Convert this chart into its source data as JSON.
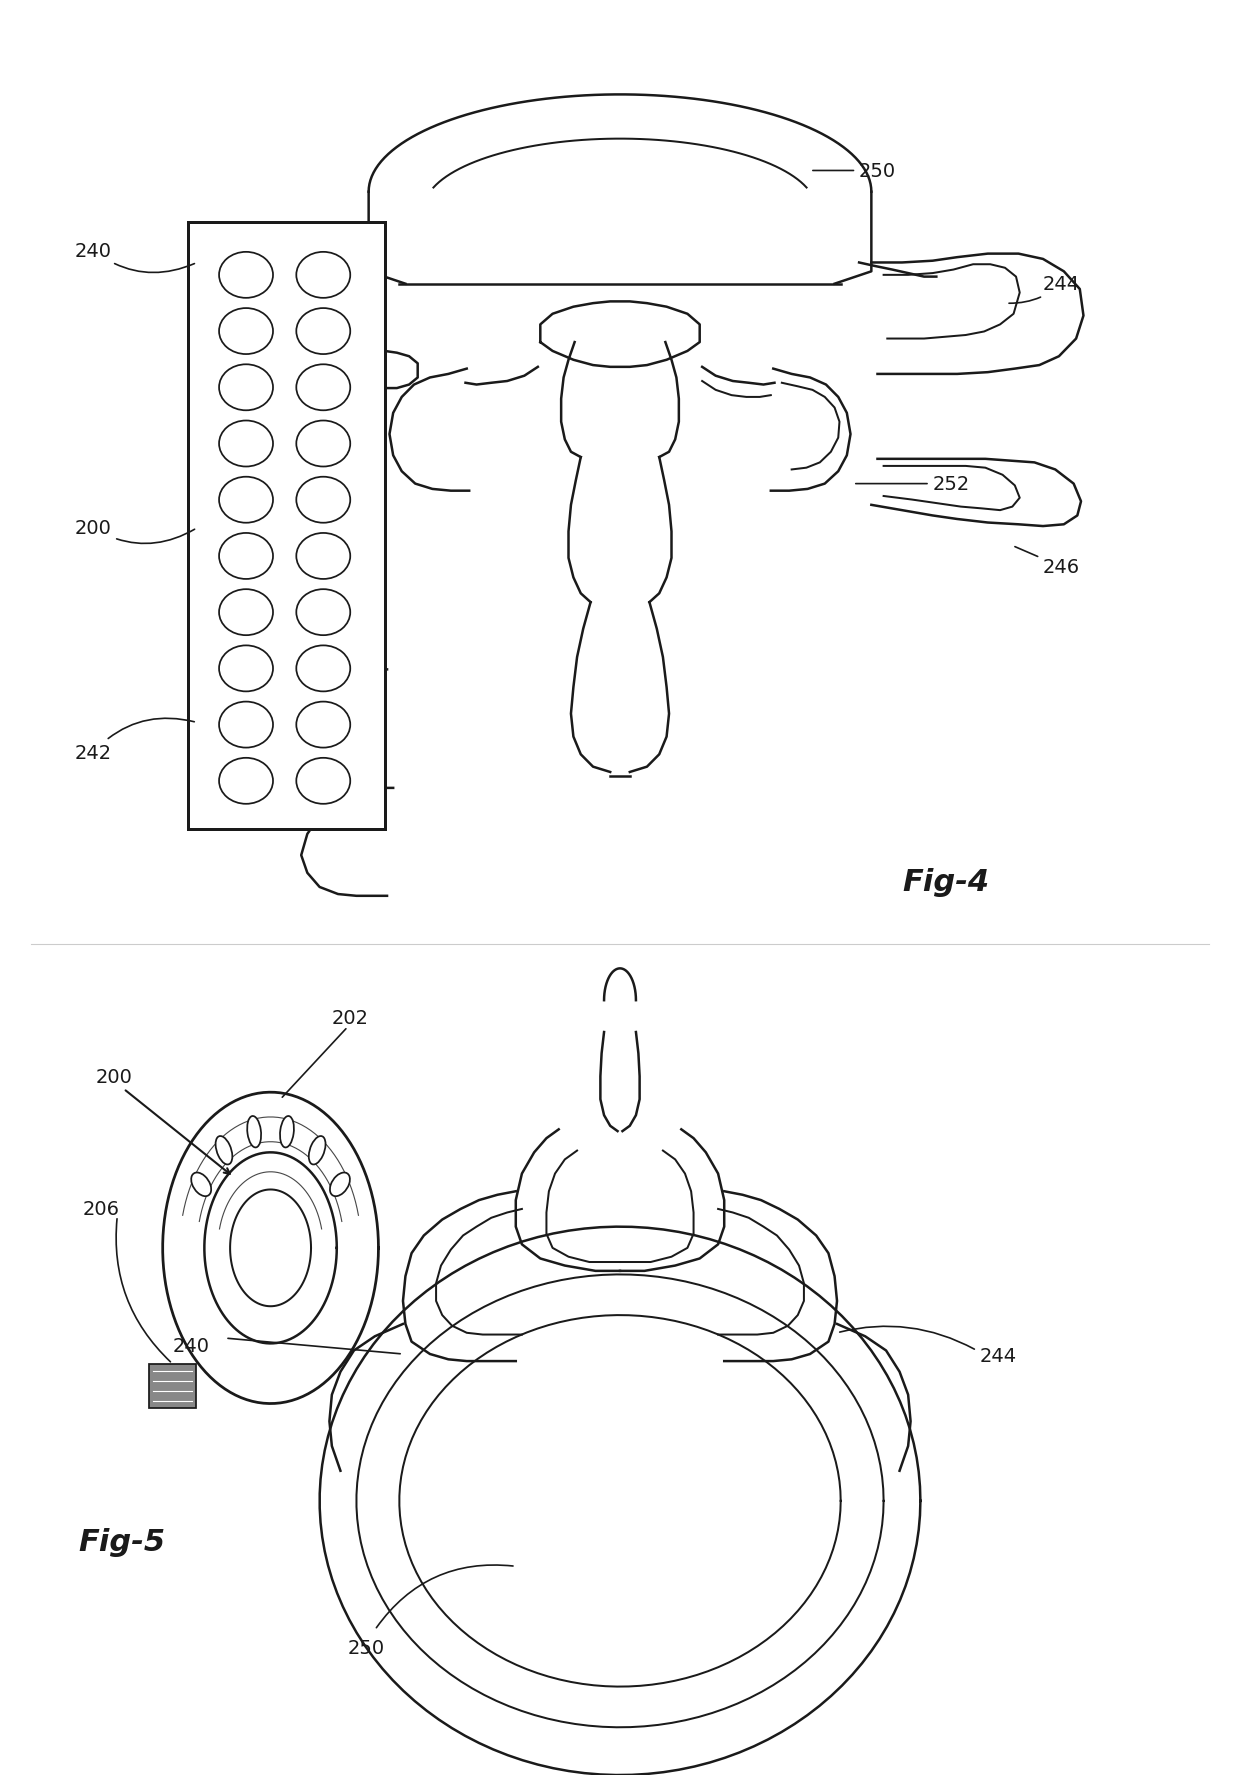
{
  "bg_color": "#ffffff",
  "line_color": "#1a1a1a",
  "line_width": 1.8,
  "fig4_label": "Fig-4",
  "fig5_label": "Fig-5",
  "font_size_label": 14,
  "font_size_fig": 22
}
